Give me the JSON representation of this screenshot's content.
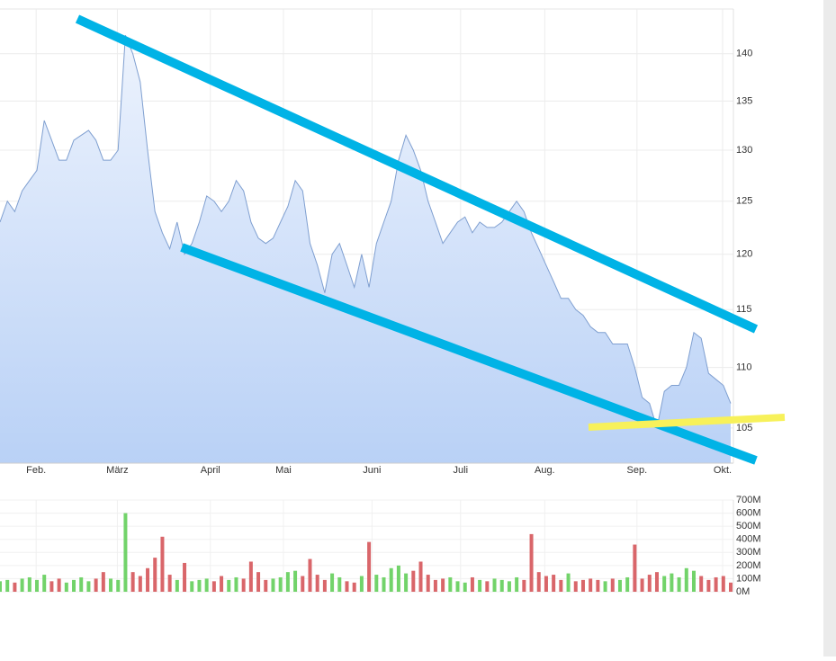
{
  "chart_data": [
    {
      "type": "area",
      "log_scale": true,
      "grid": true,
      "color": "#7f9fd0",
      "fill_top": "#edf3fd",
      "fill_bottom": "#b9d1f6",
      "xlim": [
        0,
        99
      ],
      "ylim": [
        102.2,
        144.9
      ],
      "xticks": [
        {
          "value": 4.9,
          "label": "Feb."
        },
        {
          "value": 15.9,
          "label": "März"
        },
        {
          "value": 28.5,
          "label": "April"
        },
        {
          "value": 38.4,
          "label": "Mai"
        },
        {
          "value": 50.4,
          "label": "Juni"
        },
        {
          "value": 62.4,
          "label": "Juli"
        },
        {
          "value": 73.8,
          "label": "Aug."
        },
        {
          "value": 86.3,
          "label": "Sep."
        },
        {
          "value": 97.9,
          "label": "Okt."
        }
      ],
      "yticks": [
        105,
        110,
        115,
        120,
        125,
        130,
        135,
        140
      ],
      "values": [
        123,
        125,
        124,
        126,
        127,
        128,
        133,
        131,
        129,
        129,
        131,
        131.5,
        132,
        131,
        129,
        129,
        130,
        142,
        140,
        137,
        130,
        124,
        122,
        120.5,
        123,
        120,
        121,
        123,
        125.5,
        125,
        124,
        125,
        127,
        126,
        123,
        121.5,
        121,
        121.5,
        123,
        124.5,
        127,
        126,
        121,
        119,
        116.5,
        120,
        121,
        119,
        117,
        120,
        117,
        121,
        123,
        125,
        129,
        131.5,
        130,
        128,
        125,
        123,
        121,
        122,
        123,
        123.5,
        122,
        123,
        122.5,
        122.5,
        123,
        124,
        125,
        124,
        122,
        120.5,
        119,
        117.5,
        116,
        116,
        115,
        114.5,
        113.5,
        113,
        113,
        112,
        112,
        112,
        110,
        107.5,
        107,
        105,
        108,
        108.5,
        108.5,
        110,
        113,
        112.5,
        109.5,
        109,
        108.5,
        107
      ]
    },
    {
      "type": "bar",
      "grid": true,
      "up_color": "#72d36a",
      "down_color": "#d9666a",
      "xlim": [
        0,
        99
      ],
      "ylim": [
        0,
        700
      ],
      "yticks": [
        {
          "value": 0,
          "label": "0M"
        },
        {
          "value": 100,
          "label": "100M"
        },
        {
          "value": 200,
          "label": "200M"
        },
        {
          "value": 300,
          "label": "300M"
        },
        {
          "value": 400,
          "label": "400M"
        },
        {
          "value": 500,
          "label": "500M"
        },
        {
          "value": 600,
          "label": "600M"
        },
        {
          "value": 700,
          "label": "700M"
        }
      ],
      "values": [
        80,
        90,
        70,
        100,
        110,
        90,
        130,
        80,
        100,
        70,
        90,
        110,
        80,
        100,
        150,
        100,
        90,
        600,
        150,
        120,
        180,
        260,
        420,
        130,
        90,
        220,
        80,
        90,
        100,
        80,
        120,
        90,
        110,
        100,
        230,
        150,
        90,
        100,
        110,
        150,
        160,
        120,
        250,
        130,
        90,
        140,
        110,
        80,
        70,
        120,
        380,
        130,
        110,
        180,
        200,
        140,
        160,
        230,
        130,
        90,
        100,
        110,
        80,
        70,
        110,
        90,
        80,
        100,
        90,
        80,
        110,
        90,
        440,
        150,
        120,
        130,
        90,
        140,
        80,
        90,
        100,
        90,
        80,
        100,
        90,
        110,
        360,
        100,
        130,
        150,
        120,
        140,
        110,
        180,
        160,
        120,
        90,
        110,
        120,
        70
      ]
    }
  ]
}
